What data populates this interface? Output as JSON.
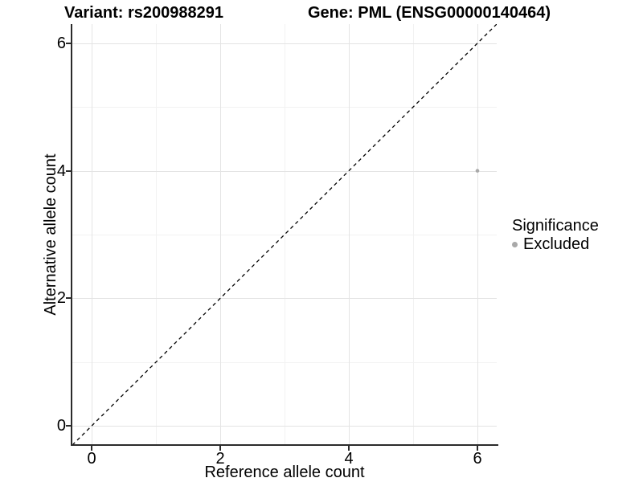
{
  "chart_data": {
    "type": "scatter",
    "title_left": "Variant: rs200988291",
    "title_right": "Gene: PML (ENSG00000140464)",
    "xlabel": "Reference allele count",
    "ylabel": "Alternative allele count",
    "x_ticks": [
      0,
      2,
      4,
      6
    ],
    "y_ticks": [
      0,
      2,
      4,
      6
    ],
    "x_minor_ticks": [
      1,
      3,
      5
    ],
    "y_minor_ticks": [
      1,
      3,
      5
    ],
    "xlim": [
      -0.3,
      6.3
    ],
    "ylim": [
      -0.3,
      6.3
    ],
    "grid": "major and minor gridlines, white background",
    "points": [
      {
        "x": 6,
        "y": 4,
        "series": "Excluded"
      }
    ],
    "reference_line": {
      "equation": "y = x",
      "style": "dashed",
      "color": "#000000"
    },
    "legend": {
      "title": "Significance",
      "position": "right",
      "entries": [
        {
          "label": "Excluded",
          "color": "#a9a9a9",
          "marker": "circle"
        }
      ]
    }
  },
  "colors": {
    "background": "#ffffff",
    "axis": "#2b2b2b",
    "grid_major": "#e4e4e4",
    "grid_minor": "#f2f2f2",
    "point": "#a9a9a9",
    "text": "#000000"
  }
}
